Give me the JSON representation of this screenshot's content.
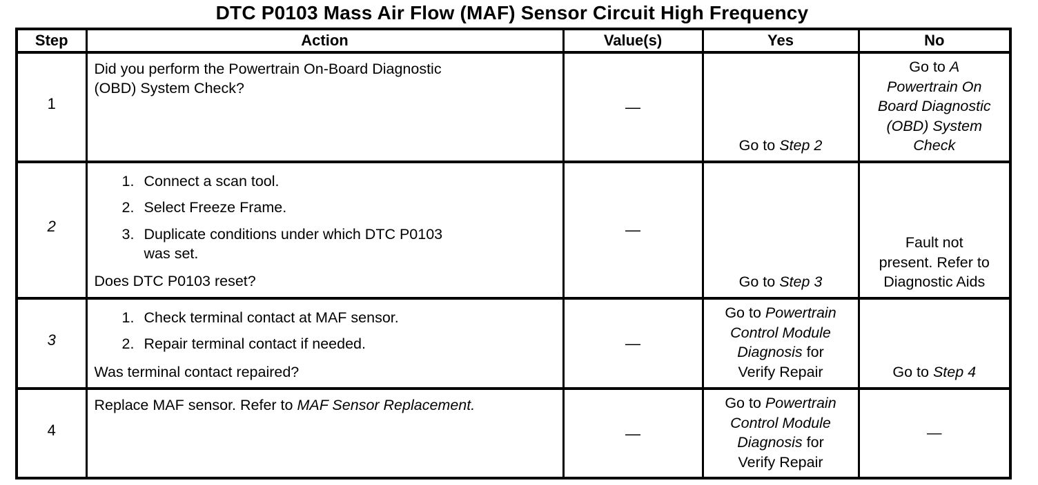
{
  "page": {
    "title": "DTC P0103 Mass Air Flow (MAF) Sensor Circuit High Frequency"
  },
  "table": {
    "headers": {
      "step": "Step",
      "action": "Action",
      "values": "Value(s)",
      "yes": "Yes",
      "no": "No"
    },
    "rows": [
      {
        "step": [
          {
            "t": "1"
          }
        ],
        "action": {
          "intro": [
            {
              "t": "Did you perform the Powertrain On-Board Diagnostic\n(OBD) System Check?"
            }
          ],
          "list": [],
          "question": []
        },
        "value": [
          {
            "t": "—"
          }
        ],
        "yes": [
          {
            "t": "Go to "
          },
          {
            "t": "Step 2",
            "i": true
          }
        ],
        "no": [
          {
            "t": "Go to "
          },
          {
            "t": "A\nPowertrain On\nBoard Diagnostic\n(OBD) System\nCheck",
            "i": true
          }
        ]
      },
      {
        "step": [
          {
            "t": "2",
            "i": true
          }
        ],
        "action": {
          "intro": [],
          "list": [
            {
              "n": "1.",
              "segs": [
                {
                  "t": "Connect a scan tool."
                }
              ]
            },
            {
              "n": "2.",
              "segs": [
                {
                  "t": "Select Freeze Frame."
                }
              ]
            },
            {
              "n": "3.",
              "segs": [
                {
                  "t": "Duplicate conditions under which DTC P0103\nwas set."
                }
              ]
            }
          ],
          "question": [
            {
              "t": "Does DTC P0103 reset?"
            }
          ]
        },
        "value": [
          {
            "t": "—"
          }
        ],
        "yes": [
          {
            "t": "Go to "
          },
          {
            "t": "Step 3",
            "i": true
          }
        ],
        "no": [
          {
            "t": "Fault not\npresent. Refer to\nDiagnostic Aids"
          }
        ]
      },
      {
        "step": [
          {
            "t": "3",
            "i": true
          }
        ],
        "action": {
          "intro": [],
          "list": [
            {
              "n": "1.",
              "segs": [
                {
                  "t": "Check terminal contact at MAF sensor."
                }
              ]
            },
            {
              "n": "2.",
              "segs": [
                {
                  "t": "Repair terminal contact if needed."
                }
              ]
            }
          ],
          "question": [
            {
              "t": "Was terminal contact repaired?"
            }
          ]
        },
        "value": [
          {
            "t": "—"
          }
        ],
        "yes": [
          {
            "t": "Go to "
          },
          {
            "t": "Powertrain\nControl Module\nDiagnosis",
            "i": true
          },
          {
            "t": " for\nVerify Repair"
          }
        ],
        "no": [
          {
            "t": "Go to "
          },
          {
            "t": "Step 4",
            "i": true
          }
        ]
      },
      {
        "step": [
          {
            "t": "4"
          }
        ],
        "action": {
          "intro": [
            {
              "t": "Replace MAF sensor. Refer to "
            },
            {
              "t": "MAF Sensor Replacement.",
              "i": true
            }
          ],
          "list": [],
          "question": []
        },
        "value": [
          {
            "t": "—"
          }
        ],
        "yes": [
          {
            "t": "Go to "
          },
          {
            "t": "Powertrain\nControl Module\nDiagnosis",
            "i": true
          },
          {
            "t": " for\nVerify Repair"
          }
        ],
        "no": [
          {
            "t": "—"
          }
        ]
      }
    ]
  }
}
